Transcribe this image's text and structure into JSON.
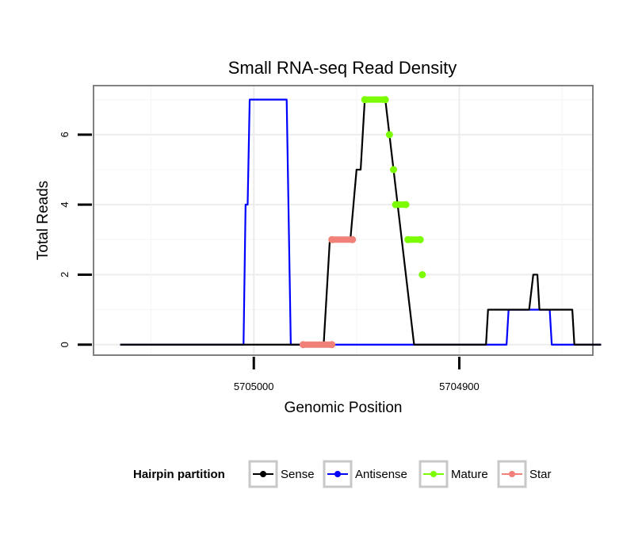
{
  "chart_data": {
    "type": "line",
    "title": "Small RNA-seq Read Density",
    "xlabel": "Genomic Position",
    "ylabel": "Total Reads",
    "x_reversed": true,
    "xlim": [
      5705078,
      5704835
    ],
    "ylim": [
      -0.3,
      7.4
    ],
    "x_ticks": [
      5705000,
      5704900
    ],
    "x_tick_labels": [
      "5705000",
      "5704900"
    ],
    "y_ticks": [
      0,
      2,
      4,
      6
    ],
    "y_tick_labels": [
      "0",
      "2",
      "4",
      "6"
    ],
    "grid": true,
    "legend": {
      "title": "Hairpin partition",
      "position": "bottom",
      "entries": [
        {
          "name": "Sense",
          "color": "#000000"
        },
        {
          "name": "Antisense",
          "color": "#0000ff"
        },
        {
          "name": "Mature",
          "color": "#7cfc00"
        },
        {
          "name": "Star",
          "color": "#f08078"
        }
      ]
    },
    "series": [
      {
        "name": "Sense",
        "color": "#000000",
        "points": [
          [
            5705065,
            0
          ],
          [
            5704966,
            0
          ],
          [
            5704963,
            3
          ],
          [
            5704953,
            3
          ],
          [
            5704950,
            5
          ],
          [
            5704948,
            5
          ],
          [
            5704946,
            7
          ],
          [
            5704936,
            7
          ],
          [
            5704922,
            0
          ],
          [
            5704887,
            0
          ],
          [
            5704886,
            1
          ],
          [
            5704866,
            1
          ],
          [
            5704864,
            2
          ],
          [
            5704862,
            2
          ],
          [
            5704861,
            1
          ],
          [
            5704845,
            1
          ],
          [
            5704844,
            0
          ],
          [
            5704831,
            0
          ]
        ]
      },
      {
        "name": "Antisense",
        "color": "#0000ff",
        "points": [
          [
            5705065,
            0
          ],
          [
            5705005,
            0
          ],
          [
            5705004,
            4
          ],
          [
            5705003,
            4
          ],
          [
            5705002,
            7
          ],
          [
            5704984,
            7
          ],
          [
            5704982,
            0
          ],
          [
            5704877,
            0
          ],
          [
            5704876,
            1
          ],
          [
            5704856,
            1
          ],
          [
            5704855,
            0
          ],
          [
            5704831,
            0
          ]
        ]
      },
      {
        "name": "Mature",
        "color": "#7cfc00",
        "points": [
          [
            5704946,
            7
          ],
          [
            5704936,
            7
          ],
          [
            5704934,
            6
          ],
          [
            5704932,
            5
          ],
          [
            5704931,
            4
          ],
          [
            5704926,
            4
          ],
          [
            5704925,
            3
          ],
          [
            5704919,
            3
          ],
          [
            5704918,
            2
          ]
        ]
      },
      {
        "name": "Star",
        "color": "#f08078",
        "points": [
          [
            5704976,
            0
          ],
          [
            5704962,
            0
          ],
          [
            5704962,
            3
          ],
          [
            5704952,
            3
          ]
        ]
      }
    ]
  }
}
